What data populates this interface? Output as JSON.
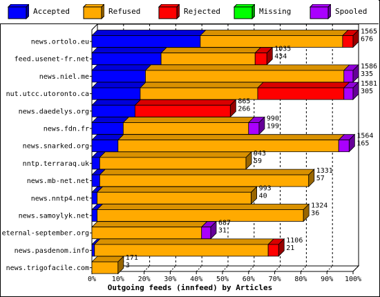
{
  "legend": [
    {
      "label": "Accepted",
      "color": "#0000ff"
    },
    {
      "label": "Refused",
      "color": "#ffaa00"
    },
    {
      "label": "Rejected",
      "color": "#ff0000"
    },
    {
      "label": "Missing",
      "color": "#00ff00"
    },
    {
      "label": "Spooled",
      "color": "#aa00ff"
    }
  ],
  "chart_data": {
    "type": "bar",
    "orientation": "horizontal",
    "stacked": true,
    "xlabel": "Outgoing feeds (innfeed) by Articles",
    "ylabel": "",
    "xlim": [
      0,
      100
    ],
    "x_ticks": [
      "0%",
      "10%",
      "20%",
      "30%",
      "40%",
      "50%",
      "60%",
      "70%",
      "80%",
      "90%",
      "100%"
    ],
    "categories": [
      "news.ortolo.eu",
      "feed.usenet-fr.net",
      "news.niel.me",
      "nut.utcc.utoronto.ca",
      "news.daedelys.org",
      "news.fdn.fr",
      "news.snarked.org",
      "nntp.terraraq.uk",
      "news.mb-net.net",
      "news.nntp4.net",
      "news.samoylyk.net",
      "eternal-september.org",
      "news.pasdenom.info",
      "news.trigofacile.com"
    ],
    "annotations": [
      [
        "1565",
        "676"
      ],
      [
        "1035",
        "434"
      ],
      [
        "1586",
        "335"
      ],
      [
        "1581",
        "305"
      ],
      [
        "865",
        "266"
      ],
      [
        "990",
        "199"
      ],
      [
        "1564",
        "165"
      ],
      [
        "943",
        "59"
      ],
      [
        "1331",
        "57"
      ],
      [
        "993",
        "40"
      ],
      [
        "1324",
        "36"
      ],
      [
        "687",
        "31"
      ],
      [
        "1106",
        "21"
      ],
      [
        "171",
        "3"
      ]
    ],
    "series": [
      {
        "name": "Accepted",
        "color": "#0000ff",
        "values": [
          41.5,
          26.5,
          20.5,
          18.5,
          16.5,
          12,
          10,
          3,
          3,
          2,
          2,
          0,
          1,
          0
        ]
      },
      {
        "name": "Refused",
        "color": "#ffaa00",
        "values": [
          54.5,
          36,
          76,
          45,
          0,
          48,
          84.5,
          56,
          80,
          59,
          79,
          42,
          66.5,
          10
        ]
      },
      {
        "name": "Rejected",
        "color": "#ff0000",
        "values": [
          4,
          4.5,
          0,
          33,
          36.5,
          0,
          0,
          0,
          0,
          0,
          0,
          0,
          4,
          0
        ]
      },
      {
        "name": "Missing",
        "color": "#00ff00",
        "values": [
          0,
          0,
          0,
          0,
          0,
          0,
          0,
          0,
          0,
          0,
          0,
          0,
          0,
          0
        ]
      },
      {
        "name": "Spooled",
        "color": "#aa00ff",
        "values": [
          0,
          0,
          3.5,
          3.5,
          0,
          4,
          4,
          0,
          0,
          0,
          0,
          3.5,
          0,
          0
        ]
      }
    ]
  }
}
